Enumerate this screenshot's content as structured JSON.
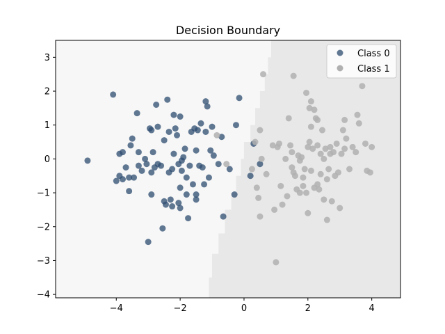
{
  "chart_data": {
    "type": "scatter",
    "title": "Decision Boundary",
    "xlabel": "",
    "ylabel": "",
    "xlim": [
      -5.9,
      4.9
    ],
    "ylim": [
      -4.1,
      3.5
    ],
    "xticks": [
      -4,
      -2,
      0,
      2,
      4
    ],
    "yticks": [
      -4,
      -3,
      -2,
      -1,
      0,
      1,
      2,
      3
    ],
    "grid": false,
    "legend_position": "top-right",
    "colors": {
      "class0": "#2e4c70",
      "class1": "#b0b0b0",
      "region0": "#f7f7f7",
      "region1": "#e8e8e8"
    },
    "boundary": [
      {
        "x": -1.1,
        "y": -4.1
      },
      {
        "x": -1.0,
        "y": -3.5
      },
      {
        "x": -0.8,
        "y": -2.8
      },
      {
        "x": -0.6,
        "y": -2.2
      },
      {
        "x": -0.4,
        "y": -1.5
      },
      {
        "x": -0.25,
        "y": -1.0
      },
      {
        "x": -0.1,
        "y": -0.5
      },
      {
        "x": 0.0,
        "y": 0.0
      },
      {
        "x": 0.2,
        "y": 0.5
      },
      {
        "x": 0.35,
        "y": 1.0
      },
      {
        "x": 0.5,
        "y": 1.5
      },
      {
        "x": 0.65,
        "y": 2.0
      },
      {
        "x": 0.75,
        "y": 2.5
      },
      {
        "x": 0.85,
        "y": 3.0
      },
      {
        "x": 0.85,
        "y": 3.5
      }
    ],
    "series": [
      {
        "name": "Class 0",
        "points": [
          [
            -4.9,
            -0.05
          ],
          [
            -4.1,
            1.9
          ],
          [
            -4.0,
            -0.65
          ],
          [
            -3.9,
            -0.5
          ],
          [
            -3.9,
            0.15
          ],
          [
            -3.8,
            0.2
          ],
          [
            -3.8,
            -0.6
          ],
          [
            -3.7,
            -0.25
          ],
          [
            -3.6,
            -0.55
          ],
          [
            -3.6,
            -0.95
          ],
          [
            -3.55,
            0.4
          ],
          [
            -3.5,
            0.6
          ],
          [
            -3.45,
            -0.55
          ],
          [
            -3.35,
            1.35
          ],
          [
            -3.3,
            0.2
          ],
          [
            -3.3,
            -0.2
          ],
          [
            -3.2,
            -0.35
          ],
          [
            -3.1,
            0.0
          ],
          [
            -3.05,
            -0.15
          ],
          [
            -3.0,
            -2.45
          ],
          [
            -2.95,
            0.9
          ],
          [
            -2.9,
            0.85
          ],
          [
            -2.9,
            -1.05
          ],
          [
            -2.9,
            -0.4
          ],
          [
            -2.85,
            0.2
          ],
          [
            -2.8,
            -0.25
          ],
          [
            -2.75,
            1.6
          ],
          [
            -2.7,
            0.95
          ],
          [
            -2.7,
            -0.15
          ],
          [
            -2.6,
            -0.2
          ],
          [
            -2.55,
            -2.05
          ],
          [
            -2.5,
            -1.25
          ],
          [
            -2.5,
            0.55
          ],
          [
            -2.45,
            -1.35
          ],
          [
            -2.4,
            1.75
          ],
          [
            -2.35,
            0.8
          ],
          [
            -2.3,
            -1.2
          ],
          [
            -2.25,
            -1.4
          ],
          [
            -2.25,
            -0.3
          ],
          [
            -2.2,
            0.15
          ],
          [
            -2.2,
            1.3
          ],
          [
            -2.15,
            0.9
          ],
          [
            -2.1,
            0.7
          ],
          [
            -2.05,
            -1.3
          ],
          [
            -2.05,
            -0.15
          ],
          [
            -2.0,
            -0.85
          ],
          [
            -2.0,
            1.25
          ],
          [
            -2.0,
            -1.45
          ],
          [
            -1.95,
            -0.35
          ],
          [
            -1.9,
            0.05
          ],
          [
            -1.85,
            0.3
          ],
          [
            -1.8,
            -0.55
          ],
          [
            -1.8,
            -1.05
          ],
          [
            -1.75,
            -1.75
          ],
          [
            -1.7,
            -0.2
          ],
          [
            -1.65,
            0.8
          ],
          [
            -1.6,
            -0.75
          ],
          [
            -1.55,
            0.9
          ],
          [
            -1.5,
            0.25
          ],
          [
            -1.5,
            -1.05
          ],
          [
            -1.5,
            -1.2
          ],
          [
            -1.45,
            0.85
          ],
          [
            -1.4,
            -0.2
          ],
          [
            -1.35,
            1.05
          ],
          [
            -1.3,
            -0.25
          ],
          [
            -1.25,
            -0.75
          ],
          [
            -1.2,
            0.8
          ],
          [
            -1.15,
            1.55
          ],
          [
            -1.1,
            -0.55
          ],
          [
            -1.05,
            0.25
          ],
          [
            -1.0,
            0.95
          ],
          [
            -0.95,
            0.1
          ],
          [
            -0.8,
            -0.15
          ],
          [
            -0.7,
            0.65
          ],
          [
            -0.65,
            -1.7
          ],
          [
            -0.45,
            -0.3
          ],
          [
            -0.3,
            -1.05
          ],
          [
            -0.25,
            1.0
          ],
          [
            -0.15,
            1.8
          ],
          [
            0.2,
            -0.5
          ],
          [
            0.3,
            0.45
          ],
          [
            0.5,
            -0.15
          ],
          [
            -1.2,
            1.7
          ],
          [
            -2.35,
            -0.4
          ],
          [
            -1.95,
            -0.05
          ]
        ]
      },
      {
        "name": "Class 1",
        "points": [
          [
            -0.85,
            0.7
          ],
          [
            -0.55,
            -0.15
          ],
          [
            0.25,
            -0.3
          ],
          [
            0.35,
            0.5
          ],
          [
            0.4,
            -0.85
          ],
          [
            0.45,
            -1.15
          ],
          [
            0.5,
            0.85
          ],
          [
            0.5,
            -1.7
          ],
          [
            0.55,
            0.0
          ],
          [
            0.6,
            2.5
          ],
          [
            0.7,
            -0.45
          ],
          [
            0.9,
            0.4
          ],
          [
            0.95,
            -1.5
          ],
          [
            1.0,
            -3.05
          ],
          [
            1.05,
            0.35
          ],
          [
            1.1,
            0.45
          ],
          [
            1.15,
            -0.8
          ],
          [
            1.2,
            -1.35
          ],
          [
            1.3,
            0.0
          ],
          [
            1.35,
            -1.1
          ],
          [
            1.4,
            1.2
          ],
          [
            1.45,
            0.4
          ],
          [
            1.5,
            0.2
          ],
          [
            1.5,
            -0.25
          ],
          [
            1.55,
            2.45
          ],
          [
            1.55,
            -0.4
          ],
          [
            1.6,
            -0.5
          ],
          [
            1.65,
            -0.9
          ],
          [
            1.7,
            0.1
          ],
          [
            1.75,
            -1.0
          ],
          [
            1.75,
            -0.05
          ],
          [
            1.8,
            0.05
          ],
          [
            1.85,
            -0.8
          ],
          [
            1.9,
            -0.3
          ],
          [
            1.95,
            1.95
          ],
          [
            2.0,
            -1.6
          ],
          [
            2.0,
            0.35
          ],
          [
            2.05,
            1.5
          ],
          [
            2.05,
            0.5
          ],
          [
            2.1,
            1.7
          ],
          [
            2.1,
            -0.35
          ],
          [
            2.15,
            0.3
          ],
          [
            2.2,
            -0.85
          ],
          [
            2.2,
            1.45
          ],
          [
            2.25,
            1.2
          ],
          [
            2.3,
            1.15
          ],
          [
            2.3,
            0.4
          ],
          [
            2.35,
            -0.9
          ],
          [
            2.4,
            -0.45
          ],
          [
            2.4,
            0.15
          ],
          [
            2.45,
            0.85
          ],
          [
            2.5,
            -1.2
          ],
          [
            2.5,
            0.0
          ],
          [
            2.55,
            0.3
          ],
          [
            2.6,
            -0.6
          ],
          [
            2.6,
            -1.8
          ],
          [
            2.65,
            -0.3
          ],
          [
            2.7,
            0.15
          ],
          [
            2.75,
            -1.25
          ],
          [
            2.8,
            0.2
          ],
          [
            2.85,
            -0.5
          ],
          [
            2.9,
            0.45
          ],
          [
            2.95,
            -0.4
          ],
          [
            3.0,
            -1.45
          ],
          [
            3.05,
            0.15
          ],
          [
            3.1,
            0.85
          ],
          [
            3.15,
            1.15
          ],
          [
            3.15,
            0.3
          ],
          [
            3.2,
            0.6
          ],
          [
            3.3,
            -0.3
          ],
          [
            3.4,
            0.35
          ],
          [
            3.5,
            0.2
          ],
          [
            3.55,
            1.3
          ],
          [
            3.6,
            1.05
          ],
          [
            3.7,
            2.15
          ],
          [
            3.8,
            0.45
          ],
          [
            3.85,
            -0.35
          ],
          [
            3.95,
            -0.4
          ],
          [
            4.0,
            0.35
          ],
          [
            1.95,
            -1.0
          ],
          [
            2.3,
            -0.75
          ],
          [
            1.85,
            -0.55
          ],
          [
            2.7,
            0.35
          ],
          [
            2.1,
            0.95
          ]
        ]
      }
    ]
  }
}
